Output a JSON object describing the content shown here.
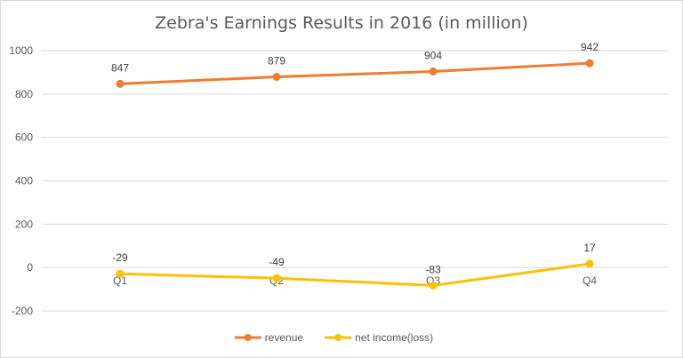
{
  "chart_data": {
    "type": "line",
    "title": "Zebra's Earnings Results in 2016 (in million)",
    "categories": [
      "Q1",
      "Q2",
      "Q3",
      "Q4"
    ],
    "series": [
      {
        "name": "revenue",
        "values": [
          847,
          879,
          904,
          942
        ],
        "color": "#ed7d31"
      },
      {
        "name": "net income(loss)",
        "values": [
          -29,
          -49,
          -83,
          17
        ],
        "color": "#ffc000"
      }
    ],
    "ylim": [
      -200,
      1000
    ],
    "yticks": [
      -200,
      0,
      200,
      400,
      600,
      800,
      1000
    ],
    "grid": true,
    "legend": "bottom"
  }
}
